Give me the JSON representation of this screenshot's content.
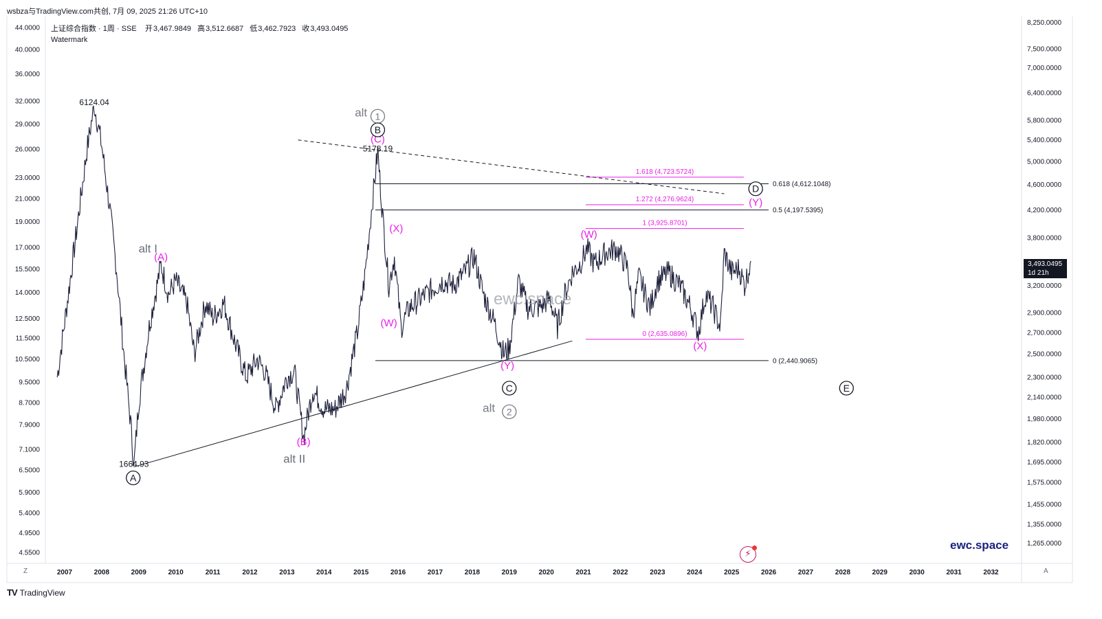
{
  "header": {
    "credit": "wsbza与TradingView.com共创, 7月 09, 2025 21:26 UTC+10"
  },
  "legend": {
    "symbol": "上证综合指数 · 1周 · SSE",
    "open_label": "开",
    "open": "3,467.9849",
    "high_label": "高",
    "high": "3,512.6687",
    "low_label": "低",
    "low": "3,462.7923",
    "close_label": "收",
    "close": "3,493.0495",
    "watermark": "Watermark"
  },
  "price_label": {
    "value": "3,493.0495",
    "countdown": "1d 21h"
  },
  "center_watermark": "ewc.space",
  "brand": "ewc.space",
  "footer": {
    "logo_text": "TradingView",
    "logo_mark": "TV"
  },
  "buttons": {
    "left": "Z",
    "right": "A"
  },
  "chart_data": {
    "type": "line",
    "title": "上证综合指数 · 1周 · SSE",
    "x_ticks": [
      "2007",
      "2008",
      "2009",
      "2010",
      "2011",
      "2012",
      "2013",
      "2014",
      "2015",
      "2016",
      "2017",
      "2018",
      "2019",
      "2020",
      "2021",
      "2022",
      "2023",
      "2024",
      "2025",
      "2026",
      "2027",
      "2028",
      "2029",
      "2030",
      "2031",
      "2032"
    ],
    "left_axis_ticks": [
      "44.0000",
      "40.0000",
      "36.0000",
      "32.0000",
      "29.0000",
      "26.0000",
      "23.0000",
      "21.0000",
      "19.0000",
      "17.0000",
      "15.5000",
      "14.0000",
      "12.5000",
      "11.5000",
      "10.5000",
      "9.5000",
      "8.7000",
      "7.9000",
      "7.1000",
      "6.5000",
      "5.9000",
      "5.4000",
      "4.9500",
      "4.5500"
    ],
    "right_axis_ticks": [
      "8,250.0000",
      "7,500.0000",
      "7,000.0000",
      "6,400.0000",
      "5,800.0000",
      "5,400.0000",
      "5,000.0000",
      "4,600.0000",
      "4,200.0000",
      "3,800.0000",
      "3,200.0000",
      "2,900.0000",
      "2,700.0000",
      "2,500.0000",
      "2,300.0000",
      "2,140.0000",
      "1,980.0000",
      "1,820.0000",
      "1,695.0000",
      "1,575.0000",
      "1,455.0000",
      "1,355.0000",
      "1,265.0000"
    ],
    "y_scale": "log",
    "ylim": [
      1200,
      8400
    ],
    "series": [
      {
        "points": [
          [
            2006.8,
            2300
          ],
          [
            2007.0,
            2800
          ],
          [
            2007.3,
            3800
          ],
          [
            2007.6,
            5200
          ],
          [
            2007.8,
            6124
          ],
          [
            2008.0,
            5300
          ],
          [
            2008.2,
            4300
          ],
          [
            2008.4,
            3400
          ],
          [
            2008.6,
            2500
          ],
          [
            2008.8,
            1900
          ],
          [
            2008.87,
            1665
          ],
          [
            2009.0,
            2100
          ],
          [
            2009.3,
            2800
          ],
          [
            2009.6,
            3450
          ],
          [
            2009.8,
            3100
          ],
          [
            2010.0,
            3250
          ],
          [
            2010.3,
            3000
          ],
          [
            2010.5,
            2500
          ],
          [
            2010.8,
            3000
          ],
          [
            2011.0,
            2850
          ],
          [
            2011.3,
            3000
          ],
          [
            2011.6,
            2600
          ],
          [
            2011.9,
            2300
          ],
          [
            2012.2,
            2450
          ],
          [
            2012.4,
            2350
          ],
          [
            2012.7,
            2050
          ],
          [
            2013.0,
            2300
          ],
          [
            2013.2,
            2350
          ],
          [
            2013.45,
            1850
          ],
          [
            2013.7,
            2200
          ],
          [
            2014.0,
            2050
          ],
          [
            2014.3,
            2050
          ],
          [
            2014.6,
            2200
          ],
          [
            2014.9,
            2700
          ],
          [
            2015.1,
            3300
          ],
          [
            2015.3,
            4300
          ],
          [
            2015.45,
            5178
          ],
          [
            2015.6,
            4000
          ],
          [
            2015.75,
            3200
          ],
          [
            2015.9,
            3550
          ],
          [
            2016.08,
            2750
          ],
          [
            2016.3,
            2950
          ],
          [
            2016.6,
            3050
          ],
          [
            2016.9,
            3150
          ],
          [
            2017.2,
            3250
          ],
          [
            2017.5,
            3200
          ],
          [
            2017.8,
            3350
          ],
          [
            2018.05,
            3550
          ],
          [
            2018.3,
            3100
          ],
          [
            2018.6,
            2800
          ],
          [
            2018.85,
            2500
          ],
          [
            2019.0,
            2550
          ],
          [
            2019.25,
            3250
          ],
          [
            2019.5,
            2950
          ],
          [
            2019.8,
            2950
          ],
          [
            2020.1,
            3050
          ],
          [
            2020.3,
            2750
          ],
          [
            2020.5,
            3100
          ],
          [
            2020.7,
            3350
          ],
          [
            2020.9,
            3450
          ],
          [
            2021.1,
            3650
          ],
          [
            2021.3,
            3450
          ],
          [
            2021.6,
            3600
          ],
          [
            2021.9,
            3650
          ],
          [
            2022.2,
            3400
          ],
          [
            2022.33,
            2880
          ],
          [
            2022.5,
            3300
          ],
          [
            2022.8,
            2950
          ],
          [
            2023.0,
            3250
          ],
          [
            2023.3,
            3350
          ],
          [
            2023.6,
            3200
          ],
          [
            2023.9,
            2950
          ],
          [
            2024.1,
            2700
          ],
          [
            2024.3,
            3100
          ],
          [
            2024.5,
            2950
          ],
          [
            2024.7,
            2750
          ],
          [
            2024.8,
            3600
          ],
          [
            2025.0,
            3350
          ],
          [
            2025.2,
            3400
          ],
          [
            2025.35,
            3200
          ],
          [
            2025.52,
            3493
          ]
        ]
      }
    ],
    "horizontal_levels": [
      {
        "label": "0.618 (4,612.1048)",
        "value": 4612.1048
      },
      {
        "label": "0.5 (4,197.5395)",
        "value": 4197.5395
      },
      {
        "label": "0 (2,440.9065)",
        "value": 2440.9065
      }
    ],
    "fib_extension_levels": [
      {
        "label": "1.618 (4,723.5724)",
        "value": 4723.5724
      },
      {
        "label": "1.272 (4,276.9624)",
        "value": 4276.9624
      },
      {
        "label": "1 (3,925.8701)",
        "value": 3925.8701
      },
      {
        "label": "0 (2,635.0896)",
        "value": 2635.0896
      }
    ],
    "trendlines": [
      {
        "style": "solid",
        "from": [
          2008.87,
          1665
        ],
        "to": [
          2020.7,
          2620
        ]
      },
      {
        "style": "dashed",
        "from": [
          2013.3,
          5400
        ],
        "to": [
          2024.8,
          4450
        ]
      }
    ],
    "annotations": [
      {
        "text": "6124.04",
        "x": 2007.8,
        "price": 6124,
        "color": "#131722"
      },
      {
        "text": "1664.93",
        "x": 2008.87,
        "price": 1665,
        "color": "#131722"
      },
      {
        "text": "5178.19",
        "x": 2015.45,
        "price": 5178,
        "color": "#131722"
      },
      {
        "text": "alt I",
        "x": 2009.25,
        "price": 3600,
        "color": "#6a6d78"
      },
      {
        "text": "alt II",
        "x": 2013.2,
        "price": 1690,
        "color": "#6a6d78"
      },
      {
        "text": "(A)",
        "x": 2009.6,
        "price": 3500,
        "color": "#e91ee8"
      },
      {
        "text": "(B)",
        "x": 2013.45,
        "price": 1800,
        "color": "#e91ee8"
      },
      {
        "text": "(C)",
        "x": 2015.45,
        "price": 5350,
        "color": "#e91ee8"
      },
      {
        "text": "(X)",
        "x": 2015.95,
        "price": 3880,
        "color": "#e91ee8"
      },
      {
        "text": "(W)",
        "x": 2015.75,
        "price": 2760,
        "color": "#e91ee8"
      },
      {
        "text": "(Y)",
        "x": 2018.95,
        "price": 2370,
        "color": "#e91ee8"
      },
      {
        "text": "(W)",
        "x": 2021.15,
        "price": 3800,
        "color": "#e91ee8"
      },
      {
        "text": "(X)",
        "x": 2024.15,
        "price": 2540,
        "color": "#e91ee8"
      },
      {
        "text": "(Y)",
        "x": 2025.65,
        "price": 4260,
        "color": "#e91ee8"
      },
      {
        "text": "alt",
        "x": 2015.0,
        "price": 5880,
        "color": "#787b86"
      },
      {
        "text": "alt",
        "x": 2018.45,
        "price": 2030,
        "color": "#787b86"
      }
    ],
    "circled_labels": [
      {
        "text": "1",
        "x": 2015.45,
        "price": 5880,
        "style": "grey"
      },
      {
        "text": "B",
        "x": 2015.45,
        "price": 5600,
        "style": "black"
      },
      {
        "text": "A",
        "x": 2008.85,
        "price": 1600,
        "style": "black"
      },
      {
        "text": "C",
        "x": 2019.0,
        "price": 2210,
        "style": "black"
      },
      {
        "text": "2",
        "x": 2019.0,
        "price": 2030,
        "style": "grey"
      },
      {
        "text": "D",
        "x": 2025.65,
        "price": 4530,
        "style": "black"
      },
      {
        "text": "E",
        "x": 2028.1,
        "price": 2210,
        "style": "black"
      }
    ]
  }
}
